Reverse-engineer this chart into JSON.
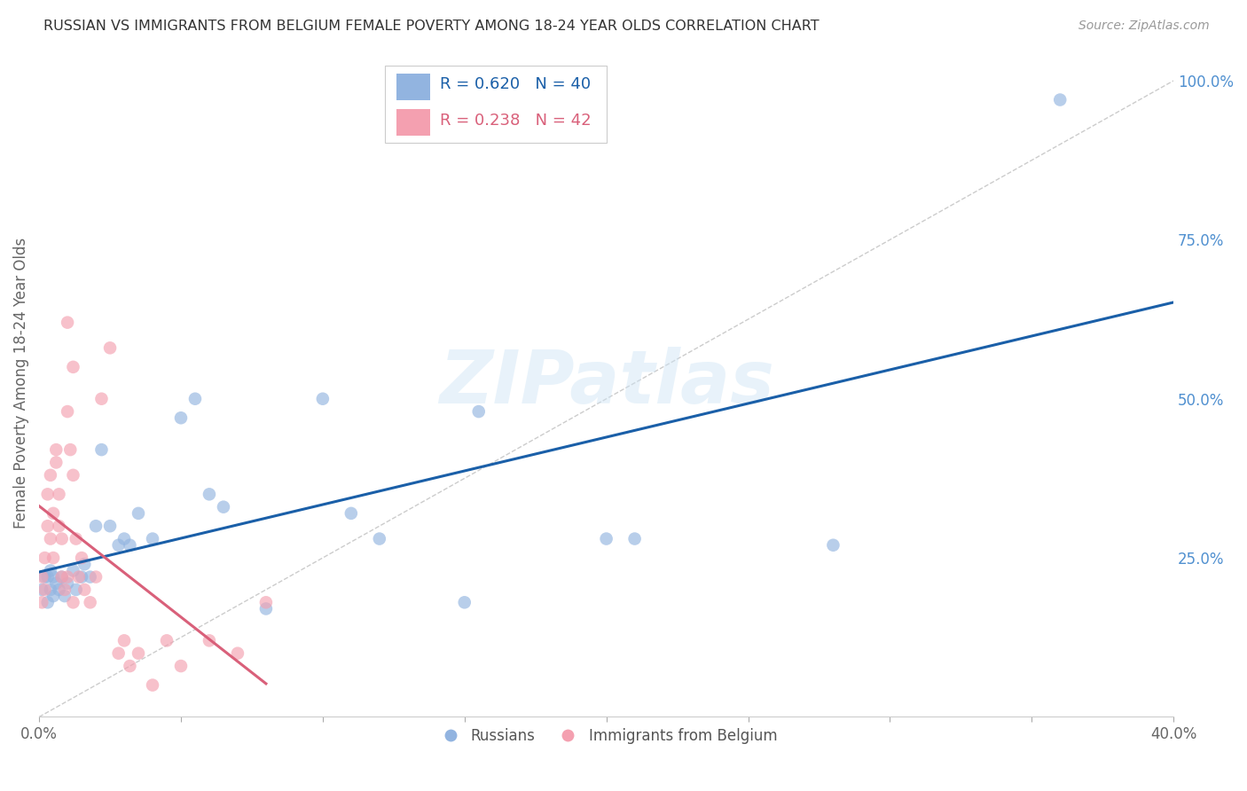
{
  "title": "RUSSIAN VS IMMIGRANTS FROM BELGIUM FEMALE POVERTY AMONG 18-24 YEAR OLDS CORRELATION CHART",
  "source": "Source: ZipAtlas.com",
  "ylabel": "Female Poverty Among 18-24 Year Olds",
  "watermark": "ZIPatlas",
  "xlim": [
    0.0,
    0.4
  ],
  "ylim": [
    0.0,
    1.05
  ],
  "legend_blue_r": "0.620",
  "legend_blue_n": "40",
  "legend_pink_r": "0.238",
  "legend_pink_n": "42",
  "blue_color": "#92b4e0",
  "pink_color": "#f4a0b0",
  "blue_line_color": "#1a5fa8",
  "pink_line_color": "#d9607a",
  "diag_line_color": "#cccccc",
  "grid_color": "#d8d8d8",
  "right_axis_color": "#5090d0",
  "russians_x": [
    0.001,
    0.002,
    0.003,
    0.003,
    0.004,
    0.004,
    0.005,
    0.005,
    0.006,
    0.007,
    0.008,
    0.009,
    0.01,
    0.012,
    0.013,
    0.015,
    0.016,
    0.018,
    0.02,
    0.022,
    0.025,
    0.028,
    0.03,
    0.032,
    0.035,
    0.04,
    0.05,
    0.055,
    0.06,
    0.065,
    0.08,
    0.1,
    0.11,
    0.12,
    0.15,
    0.155,
    0.2,
    0.21,
    0.28,
    0.36
  ],
  "russians_y": [
    0.2,
    0.22,
    0.18,
    0.22,
    0.2,
    0.23,
    0.19,
    0.22,
    0.21,
    0.2,
    0.22,
    0.19,
    0.21,
    0.23,
    0.2,
    0.22,
    0.24,
    0.22,
    0.3,
    0.42,
    0.3,
    0.27,
    0.28,
    0.27,
    0.32,
    0.28,
    0.47,
    0.5,
    0.35,
    0.33,
    0.17,
    0.5,
    0.32,
    0.28,
    0.18,
    0.48,
    0.28,
    0.28,
    0.27,
    0.97
  ],
  "belgium_x": [
    0.001,
    0.001,
    0.002,
    0.002,
    0.003,
    0.003,
    0.004,
    0.004,
    0.005,
    0.005,
    0.006,
    0.006,
    0.007,
    0.007,
    0.008,
    0.008,
    0.009,
    0.01,
    0.01,
    0.011,
    0.012,
    0.012,
    0.013,
    0.014,
    0.015,
    0.016,
    0.018,
    0.02,
    0.022,
    0.025,
    0.028,
    0.03,
    0.032,
    0.035,
    0.04,
    0.045,
    0.05,
    0.06,
    0.07,
    0.08,
    0.01,
    0.012
  ],
  "belgium_y": [
    0.18,
    0.22,
    0.2,
    0.25,
    0.3,
    0.35,
    0.28,
    0.38,
    0.25,
    0.32,
    0.4,
    0.42,
    0.35,
    0.3,
    0.22,
    0.28,
    0.2,
    0.48,
    0.22,
    0.42,
    0.18,
    0.38,
    0.28,
    0.22,
    0.25,
    0.2,
    0.18,
    0.22,
    0.5,
    0.58,
    0.1,
    0.12,
    0.08,
    0.1,
    0.05,
    0.12,
    0.08,
    0.12,
    0.1,
    0.18,
    0.62,
    0.55
  ]
}
